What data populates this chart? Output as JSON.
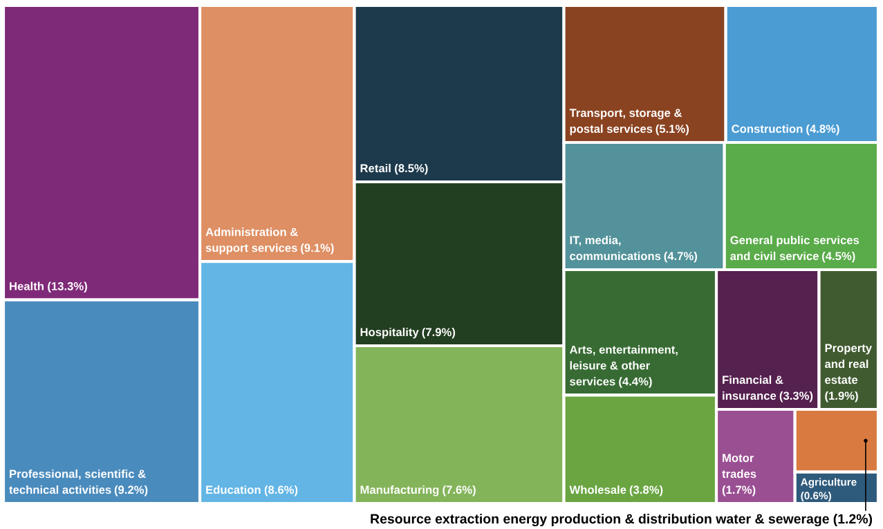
{
  "chart_data": {
    "type": "other",
    "categories": [
      "Health",
      "Professional, scientific &\ntechnical activities",
      "Administration &\nsupport services",
      "Education",
      "Retail",
      "Hospitality",
      "Manufacturing",
      "Transport, storage &\npostal services",
      "Construction",
      "IT, media,\ncommunications",
      "General public services\nand civil service",
      "Arts, entertainment,\nleisure & other\nservices",
      "Wholesale",
      "Financial &\ninsurance",
      "Property\nand real\nestate",
      "Motor\ntrades",
      "Resource extraction energy production & distribution water & sewerage",
      "Agriculture"
    ],
    "values": [
      13.3,
      9.2,
      9.1,
      8.6,
      8.5,
      7.9,
      7.6,
      5.1,
      4.8,
      4.7,
      4.5,
      4.4,
      3.8,
      3.3,
      1.9,
      1.7,
      1.2,
      0.6
    ],
    "value_labels": [
      "(13.3%)",
      "(9.2%)",
      "(9.1%)",
      "(8.6%)",
      "(8.5%)",
      "(7.9%)",
      "(7.6%)",
      "(5.1%)",
      "(4.8%)",
      "(4.7%)",
      "(4.5%)",
      "(4.4%)",
      "(3.8%)",
      "(3.3%)",
      "(1.9%)",
      "(1.7%)",
      "(1.2%)",
      "(0.6%)"
    ],
    "colors": [
      "#7f2a78",
      "#4a8bbd",
      "#de8f63",
      "#62b5e5",
      "#1d394c",
      "#233f21",
      "#84b45a",
      "#8a4321",
      "#4b9cd3",
      "#53929a",
      "#5aab4a",
      "#376b33",
      "#6aa542",
      "#55214f",
      "#405b30",
      "#9a4f93",
      "#d97b41",
      "#2e5a7c"
    ]
  }
}
